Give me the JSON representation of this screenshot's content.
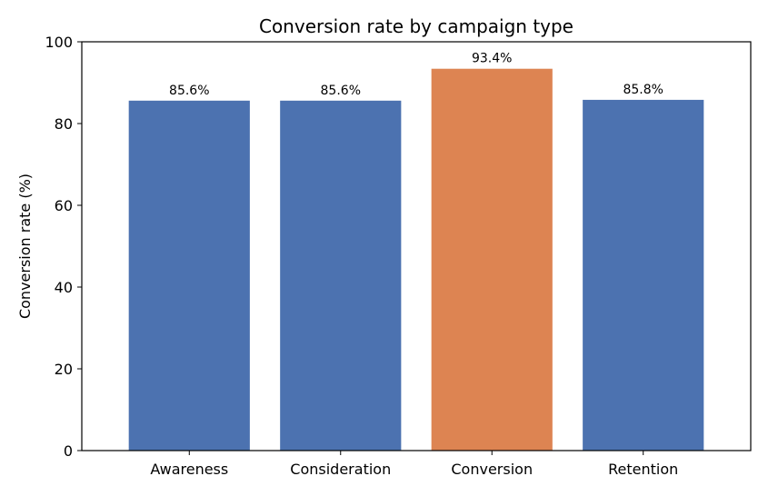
{
  "chart_data": {
    "type": "bar",
    "title": "Conversion rate by campaign type",
    "xlabel": "",
    "ylabel": "Conversion rate (%)",
    "ylim": [
      0,
      100
    ],
    "yticks": [
      0,
      20,
      40,
      60,
      80,
      100
    ],
    "grid": false,
    "categories": [
      "Awareness",
      "Consideration",
      "Conversion",
      "Retention"
    ],
    "values": [
      85.6,
      85.6,
      93.4,
      85.8
    ],
    "data_labels": [
      "85.6%",
      "85.6%",
      "93.4%",
      "85.8%"
    ],
    "highlight_index": 2,
    "colors": {
      "bar": "#4c72b0",
      "highlight": "#dd8452",
      "axis": "#000000"
    }
  }
}
